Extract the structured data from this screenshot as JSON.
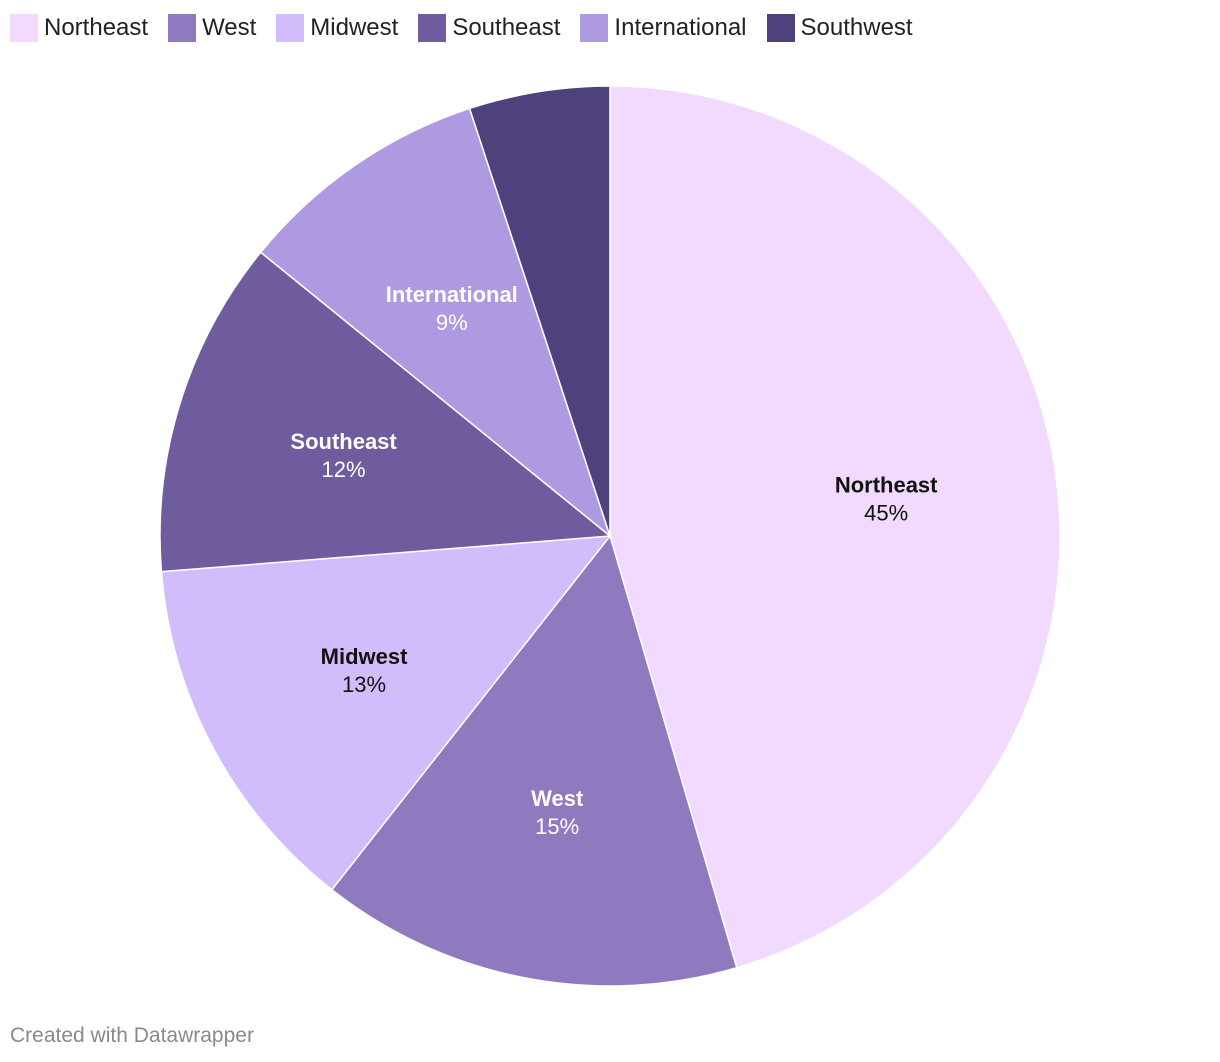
{
  "chart_data": {
    "type": "pie",
    "categories": [
      "Northeast",
      "West",
      "Midwest",
      "Southeast",
      "International",
      "Southwest"
    ],
    "values": [
      45,
      15,
      13,
      12,
      9,
      5
    ],
    "value_labels": [
      "45%",
      "15%",
      "13%",
      "12%",
      "9%",
      ""
    ],
    "colors": [
      "#f1dafe",
      "#8f7ac0",
      "#d1bdfc",
      "#6f5c9e",
      "#ae9ae0",
      "#4f417c"
    ],
    "label_colors": [
      "#111111",
      "#ffffff",
      "#111111",
      "#ffffff",
      "#ffffff",
      "#ffffff"
    ],
    "legend_position": "top-left",
    "start_angle_deg": 0,
    "direction": "clockwise"
  },
  "footer": {
    "credit": "Created with Datawrapper"
  }
}
